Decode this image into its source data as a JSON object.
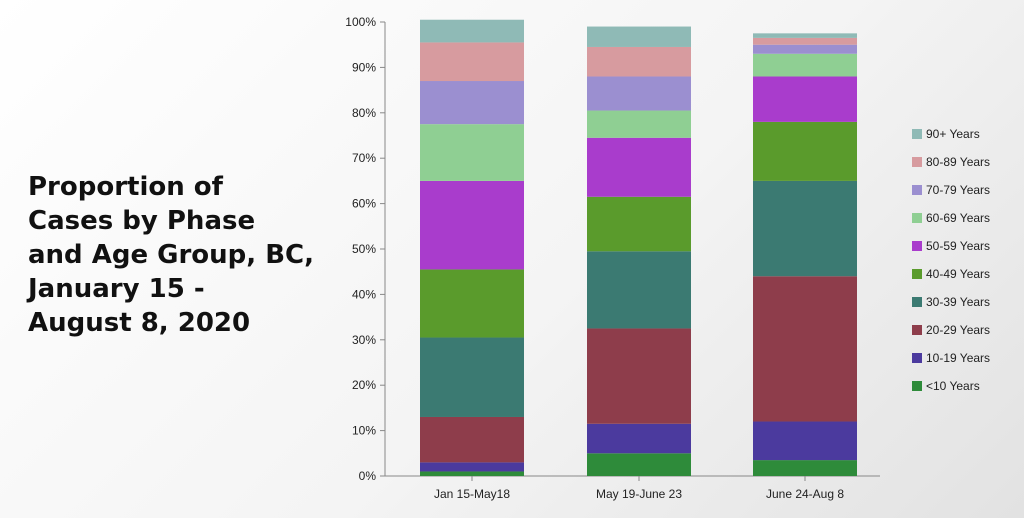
{
  "title_lines": [
    "Proportion of",
    "Cases by Phase",
    "and Age Group, BC,",
    "January 15 -",
    "August 8, 2020"
  ],
  "chart_data": {
    "type": "bar",
    "stacked": true,
    "title": "Proportion of Cases by Phase and Age Group, BC, January 15 - August 8, 2020",
    "categories": [
      "Jan 15-May18",
      "May 19-June 23",
      "June 24-Aug 8"
    ],
    "ylim": [
      0,
      100
    ],
    "yticks": [
      "0%",
      "10%",
      "20%",
      "30%",
      "40%",
      "50%",
      "60%",
      "70%",
      "80%",
      "90%",
      "100%"
    ],
    "grid": false,
    "legend_position": "right",
    "series": [
      {
        "name": "<10 Years",
        "color": "#2e8b3a",
        "values": [
          1,
          5,
          3.5
        ]
      },
      {
        "name": "10-19 Years",
        "color": "#4b3a9e",
        "values": [
          2,
          6.5,
          8.5
        ]
      },
      {
        "name": "20-29 Years",
        "color": "#8e3d4b",
        "values": [
          10,
          21,
          32
        ]
      },
      {
        "name": "30-39 Years",
        "color": "#3b7a72",
        "values": [
          17.5,
          17,
          21
        ]
      },
      {
        "name": "40-49 Years",
        "color": "#5a9b2c",
        "values": [
          15,
          12,
          13
        ]
      },
      {
        "name": "50-59 Years",
        "color": "#a93ccc",
        "values": [
          19.5,
          13,
          10
        ]
      },
      {
        "name": "60-69 Years",
        "color": "#8fcf93",
        "values": [
          12.5,
          6,
          5
        ]
      },
      {
        "name": "70-79 Years",
        "color": "#9b8fd0",
        "values": [
          9.5,
          7.5,
          2
        ]
      },
      {
        "name": "80-89 Years",
        "color": "#d79b9f",
        "values": [
          8.5,
          6.5,
          1.5
        ]
      },
      {
        "name": "90+ Years",
        "color": "#8fbab6",
        "values": [
          5,
          4.5,
          1
        ]
      }
    ]
  }
}
